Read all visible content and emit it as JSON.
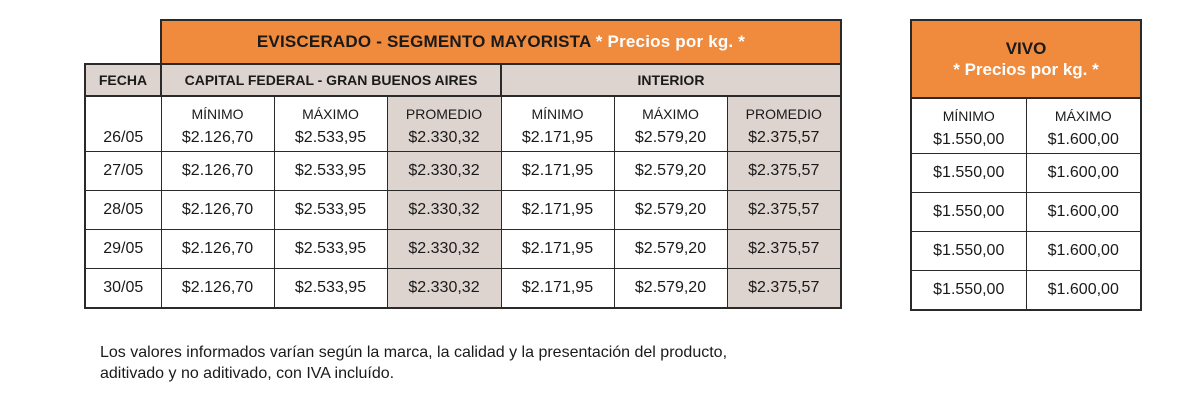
{
  "main": {
    "title": "EVISCERADO - SEGMENTO MAYORISTA",
    "title_note": "* Precios por kg. *",
    "fecha_label": "FECHA",
    "group_capital": "CAPITAL FEDERAL - GRAN BUENOS AIRES",
    "group_interior": "INTERIOR",
    "col_minimo": "MÍNIMO",
    "col_maximo": "MÁXIMO",
    "col_promedio": "PROMEDIO",
    "rows": [
      {
        "fecha": "26/05",
        "cap_min": "$2.126,70",
        "cap_max": "$2.533,95",
        "cap_prom": "$2.330,32",
        "int_min": "$2.171,95",
        "int_max": "$2.579,20",
        "int_prom": "$2.375,57"
      },
      {
        "fecha": "27/05",
        "cap_min": "$2.126,70",
        "cap_max": "$2.533,95",
        "cap_prom": "$2.330,32",
        "int_min": "$2.171,95",
        "int_max": "$2.579,20",
        "int_prom": "$2.375,57"
      },
      {
        "fecha": "28/05",
        "cap_min": "$2.126,70",
        "cap_max": "$2.533,95",
        "cap_prom": "$2.330,32",
        "int_min": "$2.171,95",
        "int_max": "$2.579,20",
        "int_prom": "$2.375,57"
      },
      {
        "fecha": "29/05",
        "cap_min": "$2.126,70",
        "cap_max": "$2.533,95",
        "cap_prom": "$2.330,32",
        "int_min": "$2.171,95",
        "int_max": "$2.579,20",
        "int_prom": "$2.375,57"
      },
      {
        "fecha": "30/05",
        "cap_min": "$2.126,70",
        "cap_max": "$2.533,95",
        "cap_prom": "$2.330,32",
        "int_min": "$2.171,95",
        "int_max": "$2.579,20",
        "int_prom": "$2.375,57"
      }
    ]
  },
  "vivo": {
    "title": "VIVO",
    "title_note": "* Precios por kg. *",
    "col_minimo": "MÍNIMO",
    "col_maximo": "MÁXIMO",
    "rows": [
      {
        "min": "$1.550,00",
        "max": "$1.600,00"
      },
      {
        "min": "$1.550,00",
        "max": "$1.600,00"
      },
      {
        "min": "$1.550,00",
        "max": "$1.600,00"
      },
      {
        "min": "$1.550,00",
        "max": "$1.600,00"
      },
      {
        "min": "$1.550,00",
        "max": "$1.600,00"
      }
    ]
  },
  "footnote": {
    "line1": "Los valores informados varían según la marca, la calidad y la presentación del producto,",
    "line2": "aditivado y no aditivado, con IVA incluído."
  },
  "colors": {
    "header_orange": "#f08a3c",
    "header_note_text": "#ffffff",
    "shade": "#ddd3cf",
    "border": "#2a2a2a"
  }
}
